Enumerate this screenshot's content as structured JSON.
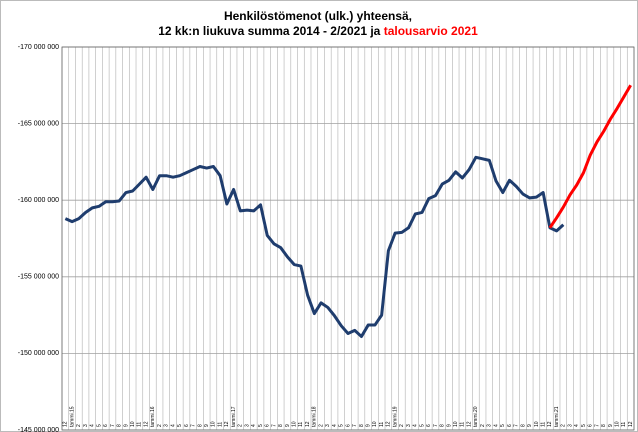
{
  "chart_data": {
    "type": "line",
    "title": [
      "Henkilöstömenot (ulk.) yhteensä,",
      "12 kk:n liukuva summa 2014 - 2/2021 ja"
    ],
    "title_highlight": "talousarvio 2021",
    "title_highlight_color": "#ff0000",
    "categories": [
      "12",
      "tammi.15",
      "2",
      "3",
      "4",
      "5",
      "6",
      "7",
      "8",
      "9",
      "10",
      "11",
      "12",
      "tammi.16",
      "2",
      "3",
      "4",
      "5",
      "6",
      "7",
      "8",
      "9",
      "10",
      "11",
      "12",
      "tammi.17",
      "2",
      "3",
      "4",
      "5",
      "6",
      "7",
      "8",
      "9",
      "10",
      "11",
      "12",
      "tammi.18",
      "2",
      "3",
      "4",
      "5",
      "6",
      "7",
      "8",
      "9",
      "10",
      "11",
      "12",
      "tammi.19",
      "2",
      "3",
      "4",
      "5",
      "6",
      "7",
      "8",
      "9",
      "10",
      "11",
      "12",
      "tammi.20",
      "2",
      "3",
      "4",
      "5",
      "6",
      "7",
      "8",
      "9",
      "10",
      "11",
      "12",
      "tammi.21",
      "2",
      "3",
      "4",
      "5",
      "6",
      "7",
      "8",
      "9",
      "10",
      "11",
      "12"
    ],
    "series": [
      {
        "color": "#1f3d6e",
        "values": [
          -158800000,
          -158600000,
          -158800000,
          -159200000,
          -159500000,
          -159600000,
          -159900000,
          -159900000,
          -159950000,
          -160500000,
          -160600000,
          -161050000,
          -161500000,
          -160700000,
          -161600000,
          -161600000,
          -161500000,
          -161600000,
          -161800000,
          -162000000,
          -162200000,
          -162100000,
          -162200000,
          -161600000,
          -159750000,
          -160700000,
          -159300000,
          -159350000,
          -159300000,
          -159700000,
          -157700000,
          -157150000,
          -156900000,
          -156300000,
          -155800000,
          -155700000,
          -153800000,
          -152600000,
          -153300000,
          -153000000,
          -152450000,
          -151800000,
          -151300000,
          -151500000,
          -151100000,
          -151850000,
          -151850000,
          -152500000,
          -156700000,
          -157850000,
          -157900000,
          -158200000,
          -159100000,
          -159200000,
          -160100000,
          -160300000,
          -161050000,
          -161300000,
          -161850000,
          -161450000,
          -162000000,
          -162800000,
          -162700000,
          -162600000,
          -161250000,
          -160500000,
          -161300000,
          -160900000,
          -160400000,
          -160150000,
          -160200000,
          -160500000,
          -158200000,
          -158000000,
          -158400000,
          null,
          null,
          null,
          null,
          null,
          null,
          null,
          null,
          null,
          null
        ]
      },
      {
        "color": "#ff0000",
        "values": [
          null,
          null,
          null,
          null,
          null,
          null,
          null,
          null,
          null,
          null,
          null,
          null,
          null,
          null,
          null,
          null,
          null,
          null,
          null,
          null,
          null,
          null,
          null,
          null,
          null,
          null,
          null,
          null,
          null,
          null,
          null,
          null,
          null,
          null,
          null,
          null,
          null,
          null,
          null,
          null,
          null,
          null,
          null,
          null,
          null,
          null,
          null,
          null,
          null,
          null,
          null,
          null,
          null,
          null,
          null,
          null,
          null,
          null,
          null,
          null,
          null,
          null,
          null,
          null,
          null,
          null,
          null,
          null,
          null,
          null,
          null,
          null,
          -158200000,
          -158850000,
          -159550000,
          -160350000,
          -161000000,
          -161800000,
          -162950000,
          -163800000,
          -164500000,
          -165300000,
          -166000000,
          -166750000,
          -167500000
        ]
      }
    ],
    "ylim": [
      -145000000,
      -170000000
    ],
    "yticks": [
      {
        "value": -170000000,
        "label": "-170 000 000"
      },
      {
        "value": -165000000,
        "label": "-165 000 000"
      },
      {
        "value": -160000000,
        "label": "-160 000 000"
      },
      {
        "value": -155000000,
        "label": "-155 000 000"
      },
      {
        "value": -150000000,
        "label": "-150 000 000"
      },
      {
        "value": -145000000,
        "label": "-145 000 000"
      }
    ],
    "grid": true
  }
}
